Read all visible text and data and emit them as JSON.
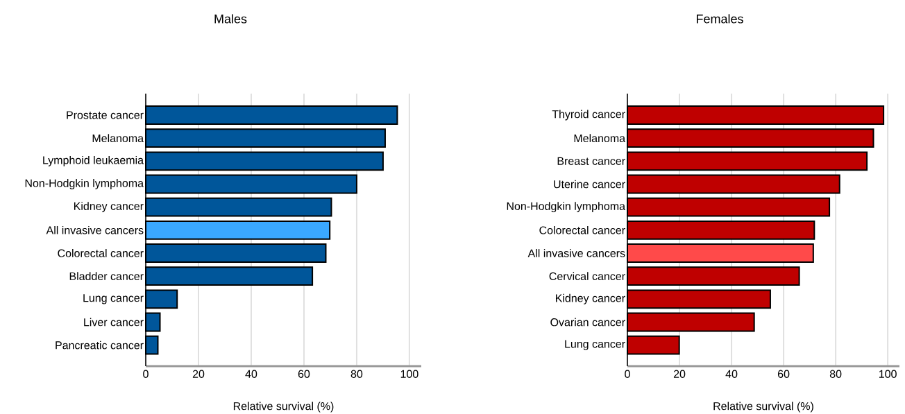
{
  "chart_data": [
    {
      "type": "bar",
      "orientation": "horizontal",
      "title": "Males",
      "xlabel": "Relative survival (%)",
      "categories": [
        "Prostate cancer",
        "Melanoma",
        "Lymphoid leukaemia",
        "Non-Hodgkin lymphoma",
        "Kidney cancer",
        "All invasive cancers",
        "Colorectal cancer",
        "Bladder cancer",
        "Lung cancer",
        "Liver cancer",
        "Pancreatic cancer"
      ],
      "values": [
        95.4,
        90.8,
        90,
        80,
        70.4,
        69.8,
        68.3,
        63.2,
        11.9,
        5.4,
        4.6
      ],
      "colors": [
        "#00569a",
        "#00569a",
        "#00569a",
        "#00569a",
        "#00569a",
        "#3aa8ff",
        "#00569a",
        "#00569a",
        "#00569a",
        "#00569a",
        "#00569a"
      ],
      "xlim": [
        0,
        104.5
      ],
      "xticks": [
        0,
        20,
        40,
        60,
        80,
        100
      ],
      "grid": "x"
    },
    {
      "type": "bar",
      "orientation": "horizontal",
      "title": "Females",
      "xlabel": "Relative survival (%)",
      "categories": [
        "Thyroid cancer",
        "Melanoma",
        "Breast cancer",
        "Uterine cancer",
        "Non-Hodgkin lymphoma",
        "Colorectal cancer",
        "All invasive cancers",
        "Cervical cancer",
        "Kidney cancer",
        "Ovarian cancer",
        "Lung cancer"
      ],
      "values": [
        98.4,
        94.5,
        92,
        81.5,
        77.6,
        71.8,
        71.4,
        66,
        54.9,
        48.7,
        19.9
      ],
      "colors": [
        "#bf0000",
        "#bf0000",
        "#bf0000",
        "#bf0000",
        "#bf0000",
        "#bf0000",
        "#ff4a4a",
        "#bf0000",
        "#bf0000",
        "#bf0000",
        "#bf0000"
      ],
      "xlim": [
        0,
        104.5
      ],
      "xticks": [
        0,
        20,
        40,
        60,
        80,
        100
      ],
      "grid": "x"
    }
  ]
}
